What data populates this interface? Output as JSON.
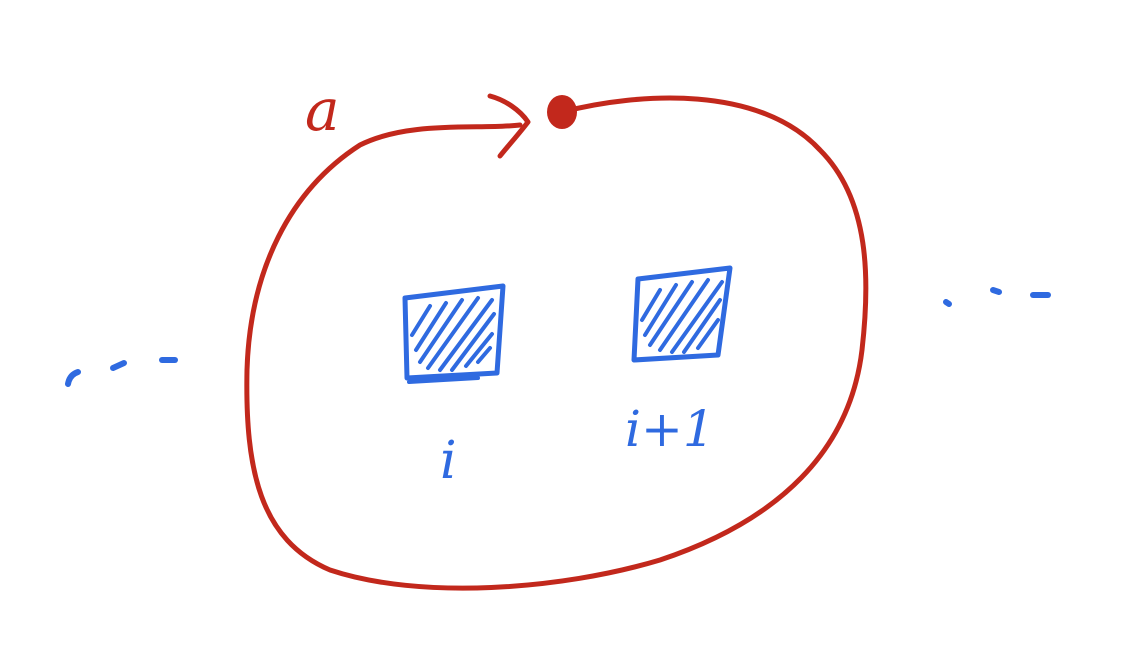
{
  "loop_label": "a",
  "site_labels": [
    "i",
    "i+1"
  ],
  "ellipsis_left": "...",
  "ellipsis_right": "...",
  "colors": {
    "loop": "#c2281c",
    "sites": "#2f6ae0",
    "background": "#ffffff"
  }
}
